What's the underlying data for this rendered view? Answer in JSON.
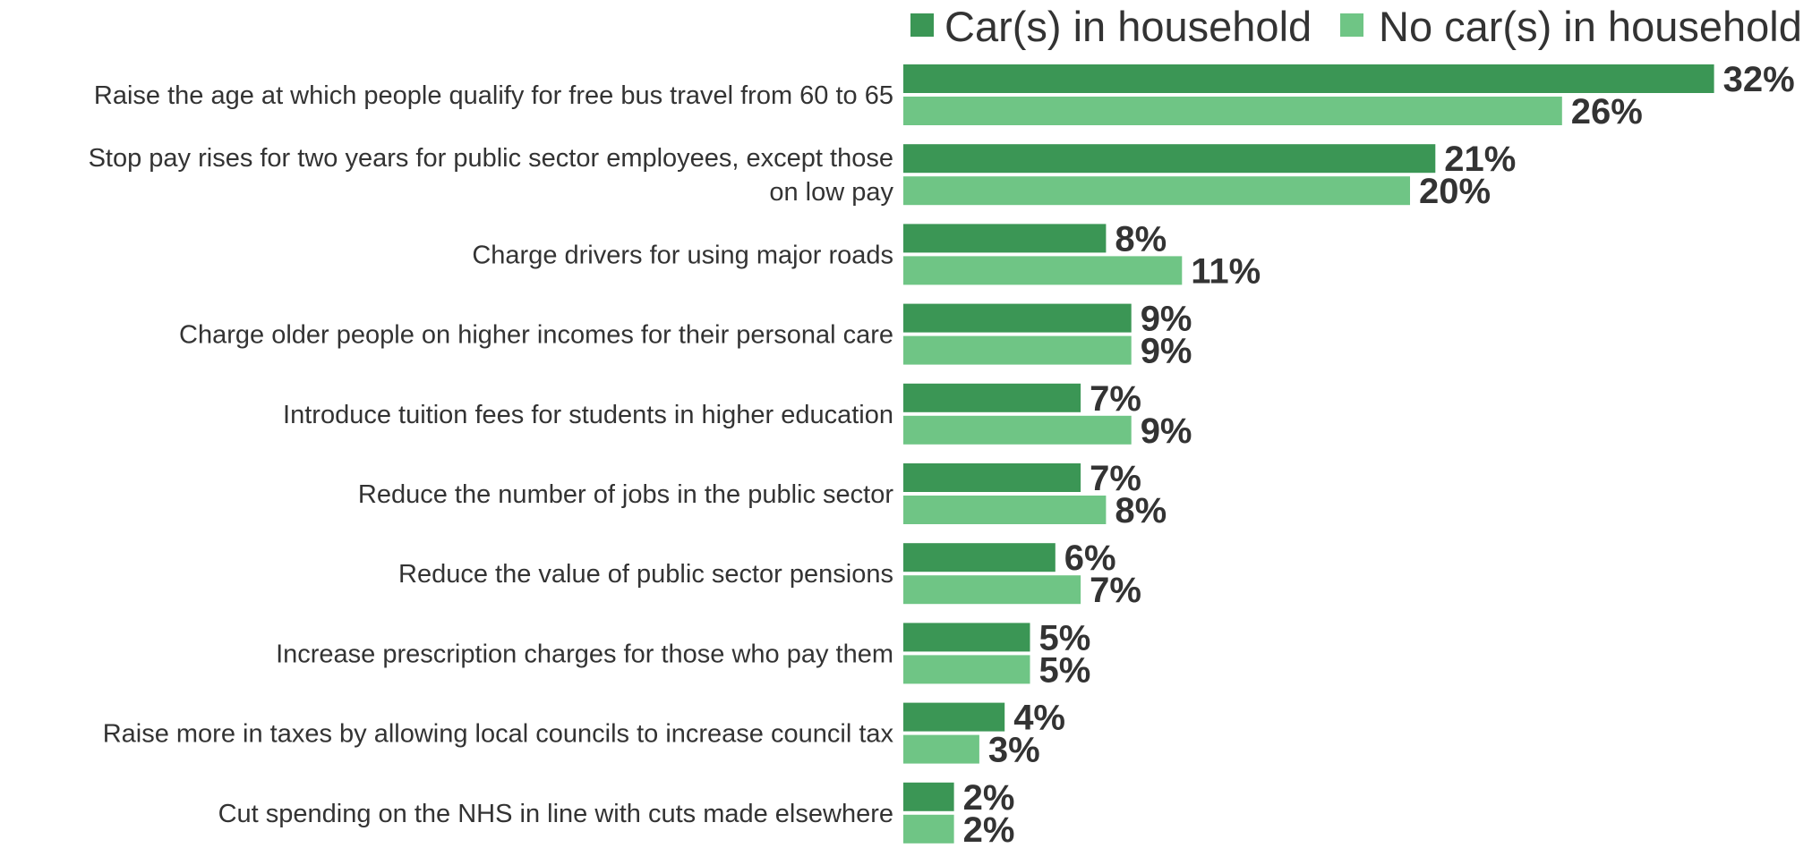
{
  "chart_data": {
    "type": "bar",
    "orientation": "horizontal",
    "title": "",
    "xlabel": "",
    "ylabel": "",
    "xlim": [
      0,
      32
    ],
    "grid": false,
    "legend_position": "top",
    "value_suffix": "%",
    "categories": [
      [
        "Raise the age at which people qualify for free bus travel from 60 to 65"
      ],
      [
        "Stop pay rises for two years for public sector employees, except those",
        "on low pay"
      ],
      [
        "Charge drivers for using major roads"
      ],
      [
        "Charge older people on higher incomes for their personal care"
      ],
      [
        "Introduce tuition fees for students in higher education"
      ],
      [
        "Reduce the number of jobs in the public sector"
      ],
      [
        "Reduce the value of public sector pensions"
      ],
      [
        "Increase prescription charges for those who pay them"
      ],
      [
        "Raise more in taxes by allowing local councils to increase council tax"
      ],
      [
        "Cut spending on the NHS in line with cuts made elsewhere"
      ]
    ],
    "series": [
      {
        "name": "Car(s) in household",
        "color": "#3b9655",
        "values": [
          32,
          21,
          8,
          9,
          7,
          7,
          6,
          5,
          4,
          2
        ]
      },
      {
        "name": "No car(s) in household",
        "color": "#6fc585",
        "values": [
          26,
          20,
          11,
          9,
          9,
          8,
          7,
          5,
          3,
          2
        ]
      }
    ]
  }
}
